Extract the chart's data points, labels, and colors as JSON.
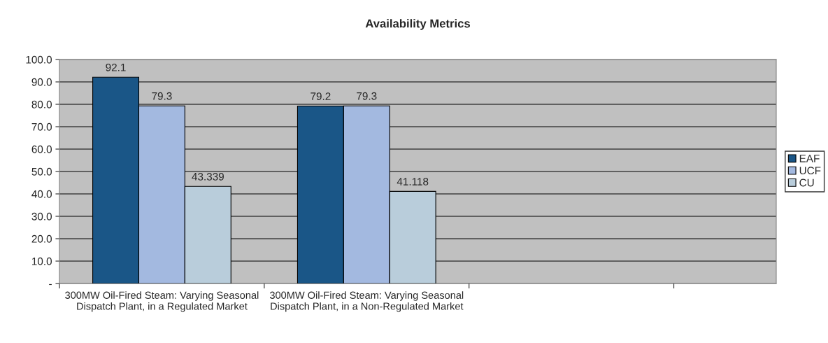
{
  "chart_data": {
    "type": "bar",
    "title": "Availability Metrics",
    "categories": [
      "300MW Oil-Fired Steam: Varying Seasonal\nDispatch Plant, in a Regulated Market",
      "300MW Oil-Fired Steam: Varying Seasonal\nDispatch Plant, in a Non-Regulated Market",
      null
    ],
    "series": [
      {
        "name": "EAF",
        "color": "#1a5687",
        "values": [
          92.1,
          79.2,
          null
        ]
      },
      {
        "name": "UCF",
        "color": "#a3b9e0",
        "values": [
          79.3,
          79.3,
          null
        ]
      },
      {
        "name": "CU",
        "color": "#b9cddb",
        "values": [
          43.339,
          41.118,
          null
        ]
      }
    ],
    "ylim": [
      0,
      100
    ],
    "yticks": [
      {
        "value": 0,
        "label": "-"
      },
      {
        "value": 10,
        "label": "10.0"
      },
      {
        "value": 20,
        "label": "20.0"
      },
      {
        "value": 30,
        "label": "30.0"
      },
      {
        "value": 40,
        "label": "40.0"
      },
      {
        "value": 50,
        "label": "50.0"
      },
      {
        "value": 60,
        "label": "60.0"
      },
      {
        "value": 70,
        "label": "70.0"
      },
      {
        "value": 80,
        "label": "80.0"
      },
      {
        "value": 90,
        "label": "90.0"
      },
      {
        "value": 100,
        "label": "100.0"
      }
    ],
    "grid": "y",
    "legend": "right",
    "data_labels": true
  }
}
